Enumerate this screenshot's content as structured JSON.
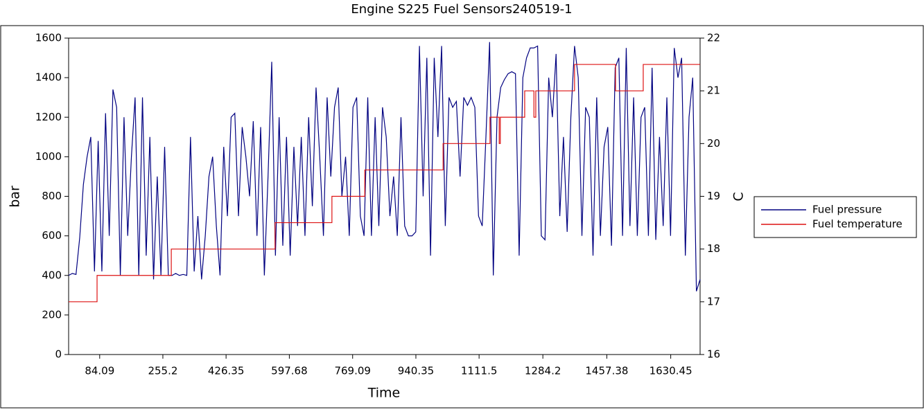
{
  "chart_data": {
    "type": "line",
    "title": "Engine S225  Fuel Sensors240519-1",
    "x_label": "Time",
    "y_label": "bar",
    "y2_label": "C",
    "xlim": [
      0,
      1710
    ],
    "xticks": [
      84.09,
      255.2,
      426.35,
      597.68,
      769.09,
      940.35,
      1111.5,
      1284.2,
      1457.38,
      1630.45
    ],
    "ylim": [
      0,
      1600
    ],
    "yticks": [
      0,
      200,
      400,
      600,
      800,
      1000,
      1200,
      1400,
      1600
    ],
    "y2lim": [
      16,
      22
    ],
    "y2ticks": [
      16,
      17,
      18,
      19,
      20,
      21,
      22
    ],
    "grid": false,
    "legend": "right",
    "series": [
      {
        "name": "Fuel pressure",
        "color": "#000080",
        "x": [
          0,
          10,
          20,
          30,
          40,
          50,
          60,
          70,
          80,
          90,
          100,
          110,
          120,
          130,
          140,
          150,
          160,
          170,
          180,
          190,
          200,
          210,
          220,
          230,
          240,
          250,
          260,
          270,
          280,
          290,
          300,
          310,
          320,
          330,
          340,
          350,
          360,
          370,
          380,
          390,
          400,
          410,
          420,
          430,
          440,
          450,
          460,
          470,
          480,
          490,
          500,
          510,
          520,
          530,
          540,
          550,
          560,
          570,
          580,
          590,
          600,
          610,
          620,
          630,
          640,
          650,
          660,
          670,
          680,
          690,
          700,
          710,
          720,
          730,
          740,
          750,
          760,
          770,
          780,
          790,
          800,
          810,
          820,
          830,
          840,
          850,
          860,
          870,
          880,
          890,
          900,
          910,
          920,
          930,
          940,
          950,
          960,
          970,
          980,
          990,
          1000,
          1010,
          1020,
          1030,
          1040,
          1050,
          1060,
          1070,
          1080,
          1090,
          1100,
          1110,
          1120,
          1130,
          1140,
          1150,
          1160,
          1170,
          1180,
          1190,
          1200,
          1210,
          1220,
          1230,
          1240,
          1250,
          1260,
          1270,
          1280,
          1290,
          1300,
          1310,
          1320,
          1330,
          1340,
          1350,
          1360,
          1370,
          1380,
          1390,
          1400,
          1410,
          1420,
          1430,
          1440,
          1450,
          1460,
          1470,
          1480,
          1490,
          1500,
          1510,
          1520,
          1530,
          1540,
          1550,
          1560,
          1570,
          1580,
          1590,
          1600,
          1610,
          1620,
          1630,
          1640,
          1650,
          1660,
          1670,
          1680,
          1690,
          1700,
          1710
        ],
        "values": [
          400,
          410,
          405,
          590,
          860,
          1000,
          1100,
          420,
          1080,
          420,
          1220,
          600,
          1340,
          1250,
          400,
          1200,
          600,
          1000,
          1300,
          400,
          1300,
          500,
          1100,
          380,
          900,
          400,
          1050,
          400,
          400,
          410,
          400,
          405,
          400,
          1100,
          420,
          700,
          380,
          600,
          900,
          1000,
          650,
          400,
          1050,
          700,
          1200,
          1220,
          700,
          1150,
          1000,
          800,
          1180,
          600,
          1150,
          400,
          900,
          1480,
          500,
          1200,
          550,
          1100,
          500,
          1050,
          650,
          1100,
          600,
          1200,
          750,
          1350,
          1000,
          600,
          1300,
          900,
          1250,
          1350,
          800,
          1000,
          600,
          1250,
          1300,
          700,
          600,
          1300,
          600,
          1200,
          650,
          1250,
          1100,
          700,
          900,
          600,
          1200,
          650,
          600,
          600,
          620,
          1560,
          800,
          1500,
          500,
          1500,
          1100,
          1560,
          650,
          1300,
          1250,
          1280,
          900,
          1300,
          1260,
          1300,
          1250,
          700,
          650,
          1100,
          1580,
          400,
          1200,
          1350,
          1390,
          1420,
          1430,
          1420,
          500,
          1400,
          1500,
          1550,
          1550,
          1560,
          600,
          580,
          1400,
          1200,
          1520,
          700,
          1100,
          620,
          1200,
          1560,
          1400,
          600,
          1250,
          1200,
          500,
          1300,
          600,
          1050,
          1150,
          550,
          1450,
          1500,
          600,
          1550,
          650,
          1300,
          600,
          1200,
          1250,
          600,
          1450,
          580,
          1100,
          650,
          1300,
          600,
          1550,
          1400,
          1500,
          500,
          1200,
          1400,
          320,
          380
        ]
      },
      {
        "name": "Fuel temperature",
        "color": "#dd1111",
        "axis": "y2",
        "x": [
          0,
          77,
          77,
          278,
          278,
          559,
          559,
          713,
          713,
          802,
          802,
          1014,
          1014,
          1141,
          1141,
          1166,
          1166,
          1169,
          1169,
          1235,
          1235,
          1260,
          1260,
          1265,
          1265,
          1370,
          1370,
          1481,
          1481,
          1556,
          1556,
          1710
        ],
        "values": [
          17,
          17,
          17.5,
          17.5,
          18,
          18,
          18.5,
          18.5,
          19,
          19,
          19.5,
          19.5,
          20,
          20,
          20.5,
          20.5,
          20,
          20,
          20.5,
          20.5,
          21,
          21,
          20.5,
          20.5,
          21,
          21,
          21.5,
          21.5,
          21,
          21,
          21.5,
          21.5
        ]
      }
    ]
  }
}
